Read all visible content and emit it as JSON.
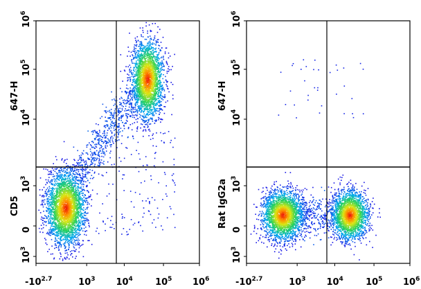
{
  "chart_data": [
    {
      "type": "scatter",
      "panel": "left",
      "ylabel_top": "647-H",
      "ylabel_bottom": "CD5",
      "xlabel": "",
      "x_ticks": [
        {
          "base": "-10",
          "exp": "2.7"
        },
        {
          "base": "10",
          "exp": "3"
        },
        {
          "base": "10",
          "exp": "4"
        },
        {
          "base": "10",
          "exp": "5"
        },
        {
          "base": "10",
          "exp": "6"
        }
      ],
      "y_ticks": [
        {
          "base": "10",
          "exp": "6"
        },
        {
          "base": "10",
          "exp": "5"
        },
        {
          "base": "10",
          "exp": "4"
        },
        {
          "base": "10",
          "exp": "3"
        },
        {
          "base": "0",
          "exp": ""
        },
        {
          "base": "10",
          "exp": "3",
          "neg": true
        }
      ],
      "quadrant_gate": {
        "x_fraction": 0.48,
        "y_fraction": 0.6
      },
      "populations": [
        {
          "cx": 0.18,
          "cy": 0.23,
          "sx": 0.058,
          "sy": 0.075,
          "n": 3200
        },
        {
          "cx": 0.68,
          "cy": 0.76,
          "sx": 0.048,
          "sy": 0.08,
          "n": 2600
        }
      ],
      "smear": {
        "from": [
          0.24,
          0.34
        ],
        "to": [
          0.62,
          0.72
        ],
        "n": 650
      },
      "sparse": {
        "x_range": [
          0.35,
          0.85
        ],
        "y_range": [
          0.12,
          0.58
        ],
        "n": 170
      }
    },
    {
      "type": "scatter",
      "panel": "right",
      "ylabel_top": "647-H",
      "ylabel_bottom": "Rat IgG2a",
      "xlabel": "",
      "x_ticks": [
        {
          "base": "-10",
          "exp": "2.7"
        },
        {
          "base": "10",
          "exp": "3"
        },
        {
          "base": "10",
          "exp": "4"
        },
        {
          "base": "10",
          "exp": "5"
        },
        {
          "base": "10",
          "exp": "6"
        }
      ],
      "y_ticks": [
        {
          "base": "10",
          "exp": "6"
        },
        {
          "base": "10",
          "exp": "5"
        },
        {
          "base": "10",
          "exp": "4"
        },
        {
          "base": "10",
          "exp": "3"
        },
        {
          "base": "0",
          "exp": ""
        },
        {
          "base": "10",
          "exp": "3",
          "neg": true
        }
      ],
      "quadrant_gate": {
        "x_fraction": 0.48,
        "y_fraction": 0.6
      },
      "populations": [
        {
          "cx": 0.22,
          "cy": 0.2,
          "sx": 0.062,
          "sy": 0.05,
          "n": 2700
        },
        {
          "cx": 0.63,
          "cy": 0.2,
          "sx": 0.055,
          "sy": 0.05,
          "n": 2300
        }
      ],
      "smear": {
        "from": [
          0.3,
          0.2
        ],
        "to": [
          0.55,
          0.2
        ],
        "n": 300
      },
      "sparse": {
        "x_range": [
          0.18,
          0.72
        ],
        "y_range": [
          0.6,
          0.85
        ],
        "n": 35
      }
    }
  ]
}
